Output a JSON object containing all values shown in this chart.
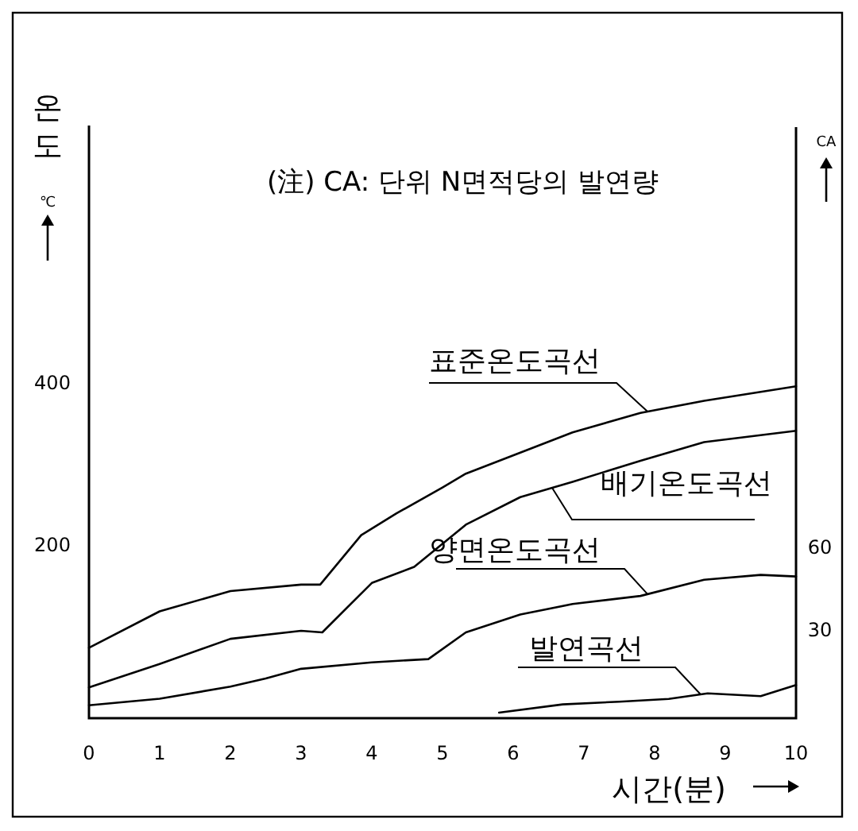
{
  "chart_data": {
    "type": "line",
    "annotations": [
      "(注) CA: 단위 N면적당의 발연량",
      "℃"
    ],
    "xlabel": "시간(분)",
    "ylabel": "온도",
    "y2label": "CA",
    "xlim": [
      0,
      10
    ],
    "xticks": [
      0,
      1,
      2,
      3,
      4,
      5,
      6,
      7,
      8,
      9,
      10
    ],
    "ylim": [
      -14,
      718
    ],
    "yticks": [
      200,
      400
    ],
    "y2lim": [
      -2,
      213
    ],
    "y2ticks": [
      30,
      60
    ],
    "grid": false,
    "legend": false,
    "marker": "none",
    "line_style": "solid",
    "series": [
      {
        "name": "표준온도곡선",
        "color": "#000000",
        "x": [
          0,
          1,
          2,
          3,
          3.27,
          3.85,
          4.35,
          5,
          5.33,
          6.1,
          6.84,
          7.8,
          8.7,
          10
        ],
        "values": [
          73,
          118,
          143,
          151,
          151,
          212,
          239,
          271,
          288,
          314,
          339,
          363,
          378,
          396
        ]
      },
      {
        "name": "배기온도곡선",
        "color": "#000000",
        "x": [
          0,
          1,
          2,
          3,
          3.3,
          4,
          4.6,
          5.33,
          6.1,
          6.84,
          7.8,
          8.7,
          10
        ],
        "values": [
          24,
          53,
          84,
          94,
          92,
          153,
          173,
          225,
          259,
          278,
          304,
          327,
          341
        ]
      },
      {
        "name": "양면온도곡선",
        "color": "#000000",
        "x": [
          0,
          1,
          2,
          2.5,
          3,
          4,
          4.8,
          5.33,
          6.1,
          6.84,
          7.8,
          8.7,
          9.5,
          10
        ],
        "values": [
          2,
          10,
          25,
          35,
          47,
          55,
          59,
          92,
          114,
          127,
          137,
          157,
          163,
          161
        ]
      },
      {
        "name": "발연곡선",
        "color": "#000000",
        "axis": "y2",
        "x": [
          5.8,
          6.7,
          7.5,
          8.2,
          8.75,
          9.5,
          10
        ],
        "values": [
          0,
          3,
          4,
          5,
          7,
          6,
          10
        ]
      }
    ]
  }
}
